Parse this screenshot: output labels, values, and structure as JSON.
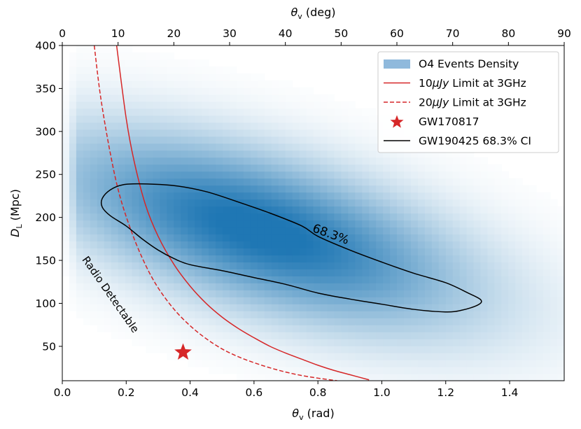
{
  "chart_data": {
    "type": "heatmap",
    "xlabel": "θv (rad)",
    "xlabel_main": "θ",
    "xlabel_sub": "v",
    "xlabel_unit": " (rad)",
    "x2label_main": "θ",
    "x2label_sub": "v",
    "x2label_unit": " (deg)",
    "ylabel_main": "D",
    "ylabel_sub": "L",
    "ylabel_unit": " (Mpc)",
    "xlim": [
      0,
      1.5708
    ],
    "ylim": [
      10,
      400
    ],
    "x2lim": [
      0,
      90
    ],
    "xticks": [
      0.0,
      0.2,
      0.4,
      0.6,
      0.8,
      1.0,
      1.2,
      1.4
    ],
    "xtick_labels": [
      "0.0",
      "0.2",
      "0.4",
      "0.6",
      "0.8",
      "1.0",
      "1.2",
      "1.4"
    ],
    "x2ticks": [
      0,
      10,
      20,
      30,
      40,
      50,
      60,
      70,
      80,
      90
    ],
    "x2tick_labels": [
      "0",
      "10",
      "20",
      "30",
      "40",
      "50",
      "60",
      "70",
      "80",
      "90"
    ],
    "yticks": [
      50,
      100,
      150,
      200,
      250,
      300,
      350,
      400
    ],
    "ytick_labels": [
      "50",
      "100",
      "150",
      "200",
      "250",
      "300",
      "350",
      "400"
    ],
    "density": {
      "name": "O4 Events Density",
      "color": "#1f77b4",
      "peak": {
        "theta": 0.62,
        "dl": 185
      },
      "spread_theta": 0.45,
      "spread_dl": 62,
      "slope_dl_per_rad": -100
    },
    "series": [
      {
        "name": "10μJy Limit at 3GHz",
        "legend_pre": "10",
        "legend_mu": "μJy",
        "legend_post": " Limit at 3GHz",
        "color": "#d62728",
        "style": "solid",
        "points": [
          [
            0.17,
            400
          ],
          [
            0.2,
            315
          ],
          [
            0.225,
            265
          ],
          [
            0.26,
            215
          ],
          [
            0.3,
            178
          ],
          [
            0.35,
            145
          ],
          [
            0.4,
            120
          ],
          [
            0.45,
            100
          ],
          [
            0.5,
            84
          ],
          [
            0.55,
            71
          ],
          [
            0.6,
            60
          ],
          [
            0.65,
            50
          ],
          [
            0.7,
            42
          ],
          [
            0.75,
            35
          ],
          [
            0.8,
            28
          ],
          [
            0.85,
            22
          ],
          [
            0.9,
            17
          ],
          [
            0.96,
            11
          ]
        ]
      },
      {
        "name": "20μJy Limit at 3GHz",
        "legend_pre": "20",
        "legend_mu": "μJy",
        "legend_post": " Limit at 3GHz",
        "color": "#d62728",
        "style": "dashed",
        "points": [
          [
            0.1,
            400
          ],
          [
            0.12,
            340
          ],
          [
            0.15,
            275
          ],
          [
            0.18,
            225
          ],
          [
            0.22,
            180
          ],
          [
            0.26,
            145
          ],
          [
            0.3,
            118
          ],
          [
            0.35,
            93
          ],
          [
            0.4,
            74
          ],
          [
            0.45,
            59
          ],
          [
            0.5,
            47
          ],
          [
            0.55,
            38
          ],
          [
            0.6,
            31
          ],
          [
            0.65,
            25
          ],
          [
            0.7,
            20
          ],
          [
            0.75,
            16
          ],
          [
            0.8,
            13
          ],
          [
            0.86,
            10
          ]
        ]
      },
      {
        "name": "GW190425 68.3% CI",
        "color": "#000000",
        "style": "solid",
        "closed": true,
        "points": [
          [
            0.15,
            232
          ],
          [
            0.19,
            238
          ],
          [
            0.25,
            239
          ],
          [
            0.35,
            237
          ],
          [
            0.45,
            230
          ],
          [
            0.55,
            218
          ],
          [
            0.65,
            205
          ],
          [
            0.75,
            190
          ],
          [
            0.8,
            178
          ],
          [
            0.9,
            162
          ],
          [
            1.0,
            148
          ],
          [
            1.1,
            135
          ],
          [
            1.2,
            124
          ],
          [
            1.27,
            112
          ],
          [
            1.31,
            104
          ],
          [
            1.3,
            98
          ],
          [
            1.25,
            92
          ],
          [
            1.2,
            90
          ],
          [
            1.1,
            93
          ],
          [
            1.0,
            99
          ],
          [
            0.9,
            105
          ],
          [
            0.8,
            112
          ],
          [
            0.7,
            122
          ],
          [
            0.6,
            130
          ],
          [
            0.5,
            138
          ],
          [
            0.4,
            145
          ],
          [
            0.35,
            152
          ],
          [
            0.3,
            162
          ],
          [
            0.25,
            175
          ],
          [
            0.2,
            190
          ],
          [
            0.15,
            202
          ],
          [
            0.125,
            212
          ],
          [
            0.125,
            222
          ]
        ]
      }
    ],
    "marker": {
      "name": "GW170817",
      "theta": 0.378,
      "dl": 43,
      "color": "#d62728"
    },
    "annotations": [
      {
        "text": "Radio Detectable",
        "theta": 0.15,
        "dl": 110,
        "rotation": 55,
        "color": "#d62728"
      },
      {
        "text": "68.3%",
        "theta": 0.84,
        "dl": 180,
        "rotation": 20,
        "color": "#000000"
      }
    ],
    "legend_position": "top-right",
    "legend_entries": [
      "O4 Events Density",
      "10μJy Limit at 3GHz",
      "20μJy Limit at 3GHz",
      "GW170817",
      "GW190425 68.3% CI"
    ]
  }
}
